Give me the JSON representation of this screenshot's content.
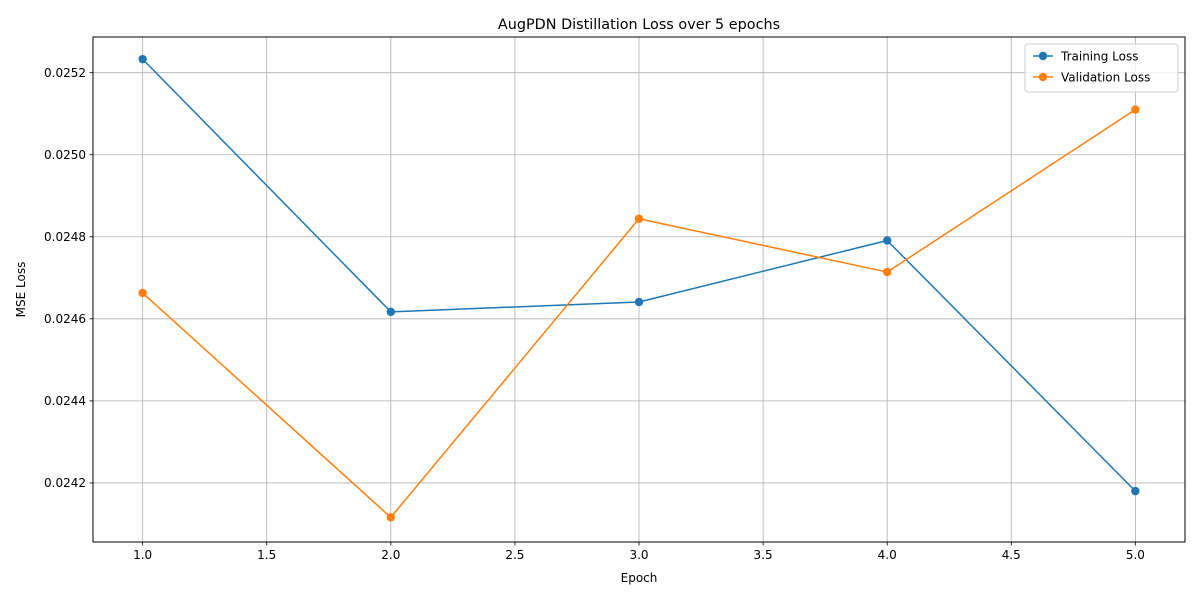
{
  "chart_data": {
    "type": "line",
    "title": "AugPDN Distillation Loss over 5 epochs",
    "xlabel": "Epoch",
    "ylabel": "MSE Loss",
    "x": [
      1,
      2,
      3,
      4,
      5
    ],
    "xlim": [
      0.8,
      5.2
    ],
    "ylim": [
      0.024056,
      0.025287
    ],
    "xticks": [
      1.0,
      1.5,
      2.0,
      2.5,
      3.0,
      3.5,
      4.0,
      4.5,
      5.0
    ],
    "xtick_labels": [
      "1.0",
      "1.5",
      "2.0",
      "2.5",
      "3.0",
      "3.5",
      "4.0",
      "4.5",
      "5.0"
    ],
    "yticks": [
      0.0242,
      0.0244,
      0.0246,
      0.0248,
      0.025,
      0.0252
    ],
    "ytick_labels": [
      "0.0242",
      "0.0244",
      "0.0246",
      "0.0248",
      "0.0250",
      "0.0252"
    ],
    "grid": true,
    "legend_position": "top-right",
    "series": [
      {
        "name": "Training Loss",
        "color": "#1f77b4",
        "values": [
          0.025233,
          0.024617,
          0.024641,
          0.024791,
          0.02418
        ]
      },
      {
        "name": "Validation Loss",
        "color": "#ff7f0e",
        "values": [
          0.024663,
          0.024116,
          0.024844,
          0.024714,
          0.02511
        ]
      }
    ]
  }
}
